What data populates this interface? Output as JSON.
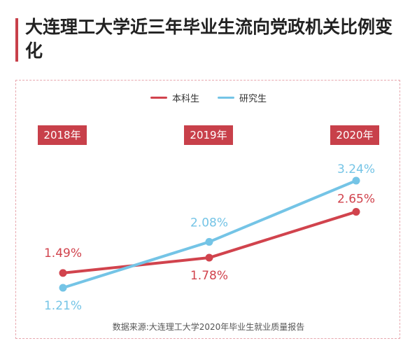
{
  "title": "大连理工大学近三年毕业生流向党政机关比例变化",
  "legend": {
    "undergrad": "本科生",
    "graduate": "研究生"
  },
  "source": "数据来源:大连理工大学2020年毕业生就业质量报告",
  "colors": {
    "undergrad": "#d1434d",
    "graduate": "#74c4e6",
    "accent": "#c8404a"
  },
  "chart_data": {
    "type": "line",
    "title": "大连理工大学近三年毕业生流向党政机关比例变化",
    "xlabel": "",
    "ylabel": "",
    "x": [
      "2018年",
      "2019年",
      "2020年"
    ],
    "series": [
      {
        "name": "本科生",
        "values": [
          1.49,
          1.78,
          2.65
        ],
        "labels": [
          "1.49%",
          "1.78%",
          "2.65%"
        ]
      },
      {
        "name": "研究生",
        "values": [
          1.21,
          2.08,
          3.24
        ],
        "labels": [
          "1.21%",
          "2.08%",
          "3.24%"
        ]
      }
    ],
    "legend": "top-center",
    "grid": false
  }
}
